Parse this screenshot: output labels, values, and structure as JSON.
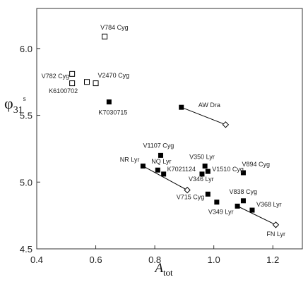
{
  "chart_data": {
    "type": "scatter",
    "title": "",
    "xlabel": {
      "main": "A",
      "sub": "tot"
    },
    "ylabel": {
      "main": "φ",
      "sub": "31",
      "sup": "s"
    },
    "xlim": [
      0.4,
      1.3
    ],
    "ylim": [
      4.5,
      6.3
    ],
    "x_ticks": [
      0.4,
      0.6,
      0.8,
      1.0,
      1.2
    ],
    "x_tick_labels": [
      "0.4",
      "0.6",
      "0.8",
      "1.0",
      "1.2"
    ],
    "y_ticks": [
      4.5,
      5.0,
      5.5,
      6.0
    ],
    "y_tick_labels": [
      "4.5",
      "5.0",
      "5.5",
      "6.0"
    ],
    "grid": false,
    "series": [
      {
        "marker": "open-square",
        "points": [
          {
            "label": "V784 Cyg",
            "x": 0.63,
            "y": 6.09
          },
          {
            "label": "V782 Cyg",
            "x": 0.52,
            "y": 5.81
          },
          {
            "label": "",
            "x": 0.57,
            "y": 5.75
          },
          {
            "label": "V2470 Cyg",
            "x": 0.6,
            "y": 5.74
          },
          {
            "label": "K6100702",
            "x": 0.52,
            "y": 5.74
          }
        ]
      },
      {
        "marker": "filled-square",
        "points": [
          {
            "label": "K7030715",
            "x": 0.645,
            "y": 5.6
          },
          {
            "label": "AW Dra",
            "x": 0.89,
            "y": 5.56
          },
          {
            "label": "V1107 Cyg",
            "x": 0.82,
            "y": 5.2
          },
          {
            "label": "NR Lyr",
            "x": 0.76,
            "y": 5.12
          },
          {
            "label": "NQ Lyr",
            "x": 0.81,
            "y": 5.09
          },
          {
            "label": "K7021124",
            "x": 0.83,
            "y": 5.06
          },
          {
            "label": "V350 Lyr",
            "x": 0.97,
            "y": 5.12
          },
          {
            "label": "V1510 Cyg",
            "x": 0.98,
            "y": 5.08
          },
          {
            "label": "V346 Lyr",
            "x": 0.96,
            "y": 5.06
          },
          {
            "label": "V894 Cyg",
            "x": 1.1,
            "y": 5.07
          },
          {
            "label": "V715 Cyg",
            "x": 0.98,
            "y": 4.91
          },
          {
            "label": "V349 Lyr",
            "x": 1.01,
            "y": 4.85
          },
          {
            "label": "V838 Cyg",
            "x": 1.1,
            "y": 4.86
          },
          {
            "label": "V368 Lyr",
            "x": 1.13,
            "y": 4.79
          },
          {
            "label": "",
            "x": 1.08,
            "y": 4.82
          }
        ]
      },
      {
        "marker": "open-diamond",
        "points": [
          {
            "label": "",
            "x": 1.04,
            "y": 5.43
          },
          {
            "label": "",
            "x": 0.91,
            "y": 4.94
          },
          {
            "label": "FN Lyr",
            "x": 1.21,
            "y": 4.68
          }
        ]
      }
    ],
    "lines": [
      {
        "from": [
          0.89,
          5.56
        ],
        "to": [
          1.04,
          5.43
        ]
      },
      {
        "from": [
          0.76,
          5.12
        ],
        "to": [
          0.91,
          4.94
        ]
      },
      {
        "from": [
          1.08,
          4.82
        ],
        "to": [
          1.21,
          4.68
        ]
      }
    ]
  }
}
